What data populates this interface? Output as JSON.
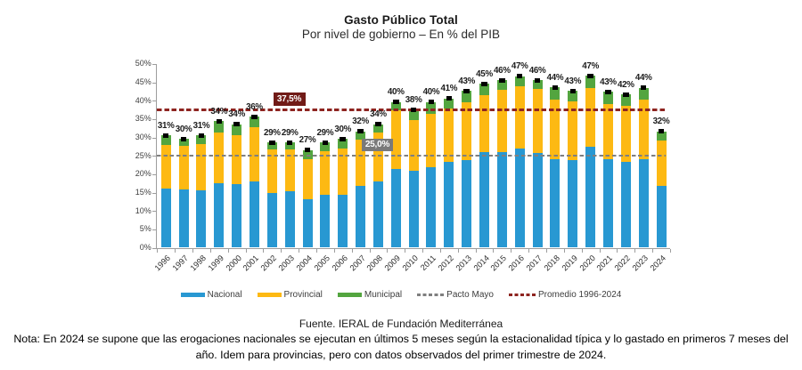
{
  "title": "Gasto Público Total",
  "subtitle": "Por nivel de gobierno – En % del PIB",
  "source": "Fuente. IERAL de Fundación Mediterránea",
  "note": [
    "Nota: En 2024 se supone que las erogaciones nacionales se ejecutan en últimos 5 meses según la estacionalidad típica y lo gastado en primeros 7 meses del",
    "año. Idem para provincias, pero con datos observados del primer trimestre de 2024."
  ],
  "chart_data": {
    "type": "bar",
    "stacked": true,
    "unit": "% del PIB",
    "categories": [
      "1996",
      "1997",
      "1998",
      "1999",
      "2000",
      "2001",
      "2002",
      "2003",
      "2004",
      "2005",
      "2006",
      "2007",
      "2008",
      "2009",
      "2010",
      "2011",
      "2012",
      "2013",
      "2014",
      "2015",
      "2016",
      "2017",
      "2018",
      "2019",
      "2020",
      "2021",
      "2022",
      "2023",
      "2024"
    ],
    "series": [
      {
        "name": "Nacional",
        "color": "#2898d2",
        "values": [
          16.2,
          15.8,
          15.7,
          17.6,
          17.3,
          18.0,
          15.0,
          15.4,
          13.1,
          14.3,
          14.3,
          16.7,
          18.1,
          21.4,
          20.9,
          21.9,
          23.3,
          23.8,
          26.1,
          26.0,
          27.1,
          25.7,
          24.1,
          23.8,
          27.4,
          24.0,
          23.3,
          24.1,
          16.7
        ]
      },
      {
        "name": "Provincial",
        "color": "#fdb913",
        "values": [
          11.8,
          11.9,
          12.6,
          13.8,
          13.4,
          14.7,
          11.7,
          11.3,
          11.0,
          11.9,
          12.7,
          12.7,
          13.2,
          15.9,
          13.8,
          14.5,
          14.6,
          15.7,
          15.3,
          16.9,
          16.8,
          17.4,
          16.2,
          16.1,
          16.1,
          15.1,
          15.3,
          16.1,
          12.4
        ]
      },
      {
        "name": "Municipal",
        "color": "#53a53f",
        "values": [
          2.6,
          1.9,
          2.3,
          3.0,
          2.9,
          2.9,
          1.9,
          1.9,
          2.5,
          2.4,
          2.6,
          2.2,
          2.3,
          2.3,
          2.9,
          3.2,
          2.7,
          3.1,
          3.2,
          2.7,
          2.7,
          2.5,
          3.3,
          2.7,
          3.3,
          3.3,
          3.1,
          3.3,
          2.5
        ]
      }
    ],
    "total_labels": [
      "31%",
      "30%",
      "31%",
      "34%",
      "34%",
      "36%",
      "29%",
      "29%",
      "27%",
      "29%",
      "30%",
      "32%",
      "34%",
      "40%",
      "38%",
      "40%",
      "41%",
      "43%",
      "45%",
      "46%",
      "47%",
      "46%",
      "44%",
      "43%",
      "47%",
      "43%",
      "42%",
      "44%",
      "32%"
    ],
    "marker_color": "#000000",
    "ref_lines": [
      {
        "name": "Pacto Mayo",
        "value": 25.0,
        "label": "25,0%",
        "line_color": "#7f7f7f",
        "box_color": "#7a7a7a",
        "style": "dashed",
        "thick": 1.8,
        "dash": 4.5,
        "gap": 2.8
      },
      {
        "name": "Promedio 1996-2024",
        "value": 37.5,
        "label": "37,5%",
        "line_color": "#8e2420",
        "box_color": "#711b17",
        "style": "dashed",
        "thick": 2.4,
        "dash": 5.5,
        "gap": 2.8
      }
    ],
    "y_axis": {
      "min": 0,
      "max": 50,
      "step": 5,
      "tick_labels": [
        "0%",
        "5%",
        "10%",
        "15%",
        "20%",
        "25%",
        "30%",
        "35%",
        "40%",
        "45%",
        "50%"
      ]
    },
    "legend": [
      "Nacional",
      "Provincial",
      "Municipal",
      "Pacto Mayo",
      "Promedio 1996-2024"
    ]
  }
}
